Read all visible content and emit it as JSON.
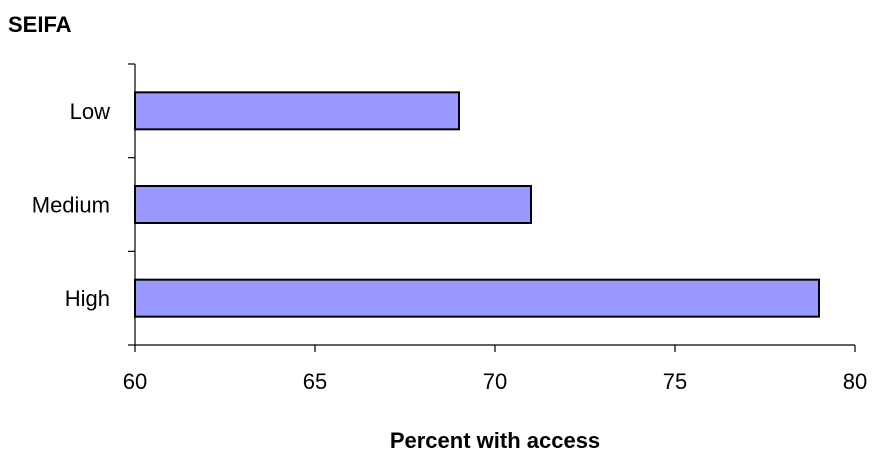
{
  "chart_data": {
    "type": "bar",
    "orientation": "horizontal",
    "title": "SEIFA",
    "xlabel": "Percent with access",
    "ylabel": "",
    "categories": [
      "Low",
      "Medium",
      "High"
    ],
    "values": [
      69,
      71,
      79
    ],
    "xlim": [
      60,
      80
    ],
    "xticks": [
      "60",
      "65",
      "70",
      "75",
      "80"
    ],
    "grid": false,
    "legend": "none",
    "bar_color": "#9999ff"
  }
}
